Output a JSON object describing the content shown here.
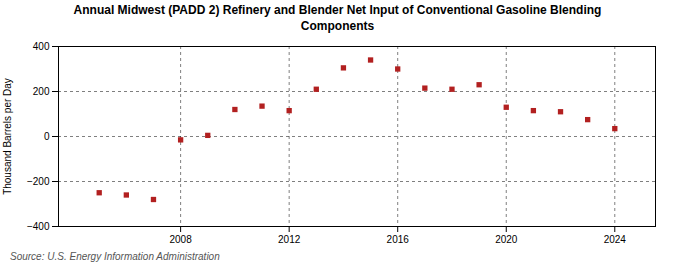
{
  "chart_data": {
    "type": "scatter",
    "title": "Annual Midwest (PADD 2) Refinery and Blender Net Input of Conventional Gasoline Blending\nComponents",
    "ylabel": "Thousand Barrels per Day",
    "source": "Source: U.S. Energy Information Administration",
    "x": [
      2005,
      2006,
      2007,
      2008,
      2009,
      2010,
      2011,
      2012,
      2013,
      2014,
      2015,
      2016,
      2017,
      2018,
      2019,
      2020,
      2021,
      2022,
      2023,
      2024
    ],
    "values": [
      -250,
      -260,
      -280,
      -15,
      5,
      120,
      135,
      115,
      210,
      305,
      340,
      300,
      215,
      210,
      230,
      130,
      115,
      110,
      75,
      35
    ],
    "color": "#b22020",
    "marker": "square",
    "xlim": [
      2003.5,
      2025.5
    ],
    "xticks": [
      2008,
      2012,
      2016,
      2020,
      2024
    ],
    "ylim": [
      -400,
      400
    ],
    "yticks": [
      -400,
      -200,
      0,
      200,
      400
    ],
    "grid": true
  }
}
